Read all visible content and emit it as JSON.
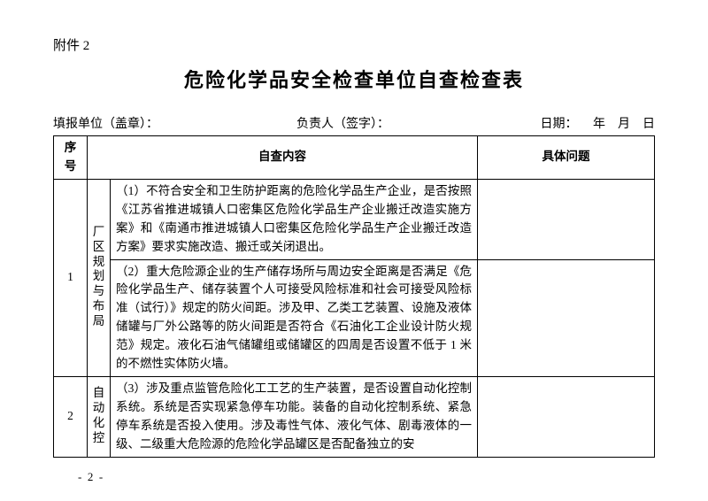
{
  "attachment_label": "附件 2",
  "main_title": "危险化学品安全检查单位自查检查表",
  "meta": {
    "org_label": "填报单位（盖章）：",
    "signer_label": "负责人（签字）：",
    "date_label": "日期：     年    月    日"
  },
  "headers": {
    "seq": "序号",
    "content": "自查内容",
    "issue": "具体问题"
  },
  "rows": [
    {
      "seq": "1",
      "category": "厂区规划与布局",
      "items": [
        "（1）不符合安全和卫生防护距离的危险化学品生产企业，是否按照《江苏省推进城镇人口密集区危险化学品生产企业搬迁改造实施方案》和《南通市推进城镇人口密集区危险化学品生产企业搬迁改造方案》要求实施改造、搬迁或关闭退出。",
        "（2）重大危险源企业的生产储存场所与周边安全距离是否满足《危险化学品生产、储存装置个人可接受风险标准和社会可接受风险标准（试行）》规定的防火间距。涉及甲、乙类工艺装置、设施及液体储罐与厂外公路等的防火间距是否符合《石油化工企业设计防火规范》规定。液化石油气储罐组或储罐区的四周是否设置不低于 1 米的不燃性实体防火墙。"
      ]
    },
    {
      "seq": "2",
      "category": "自动化控",
      "items": [
        "（3）涉及重点监管危险化工工艺的生产装置，是否设置自动化控制系统。系统是否实现紧急停车功能。装备的自动化控制系统、紧急停车系统是否投入使用。涉及毒性气体、液化气体、剧毒液体的一级、二级重大危险源的危险化学品罐区是否配备独立的安"
      ]
    }
  ],
  "page_footer": "-  2  -"
}
